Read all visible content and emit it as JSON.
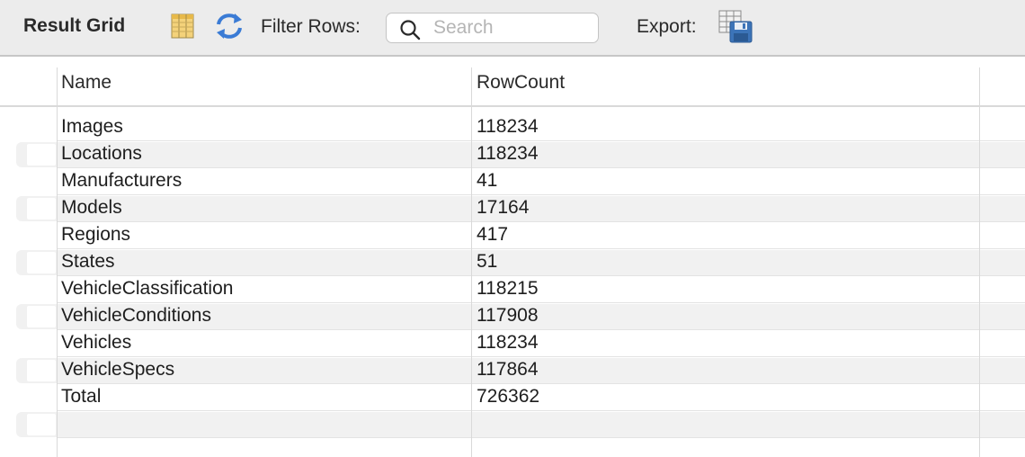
{
  "toolbar": {
    "title": "Result Grid",
    "filter_label": "Filter Rows:",
    "search_placeholder": "Search",
    "export_label": "Export:"
  },
  "grid": {
    "columns": [
      "Name",
      "RowCount"
    ],
    "rows": [
      {
        "name": "Images",
        "count": "118234"
      },
      {
        "name": "Locations",
        "count": "118234"
      },
      {
        "name": "Manufacturers",
        "count": "41"
      },
      {
        "name": "Models",
        "count": "17164"
      },
      {
        "name": "Regions",
        "count": "417"
      },
      {
        "name": "States",
        "count": "51"
      },
      {
        "name": "VehicleClassification",
        "count": "118215"
      },
      {
        "name": "VehicleConditions",
        "count": "117908"
      },
      {
        "name": "Vehicles",
        "count": "118234"
      },
      {
        "name": "VehicleSpecs",
        "count": "117864"
      },
      {
        "name": "Total",
        "count": "726362"
      },
      {
        "name": "",
        "count": ""
      }
    ]
  },
  "colors": {
    "toolbar_bg": "#ececec",
    "alt_row_bg": "#f1f1f1",
    "accent_blue": "#3a7bd5"
  }
}
